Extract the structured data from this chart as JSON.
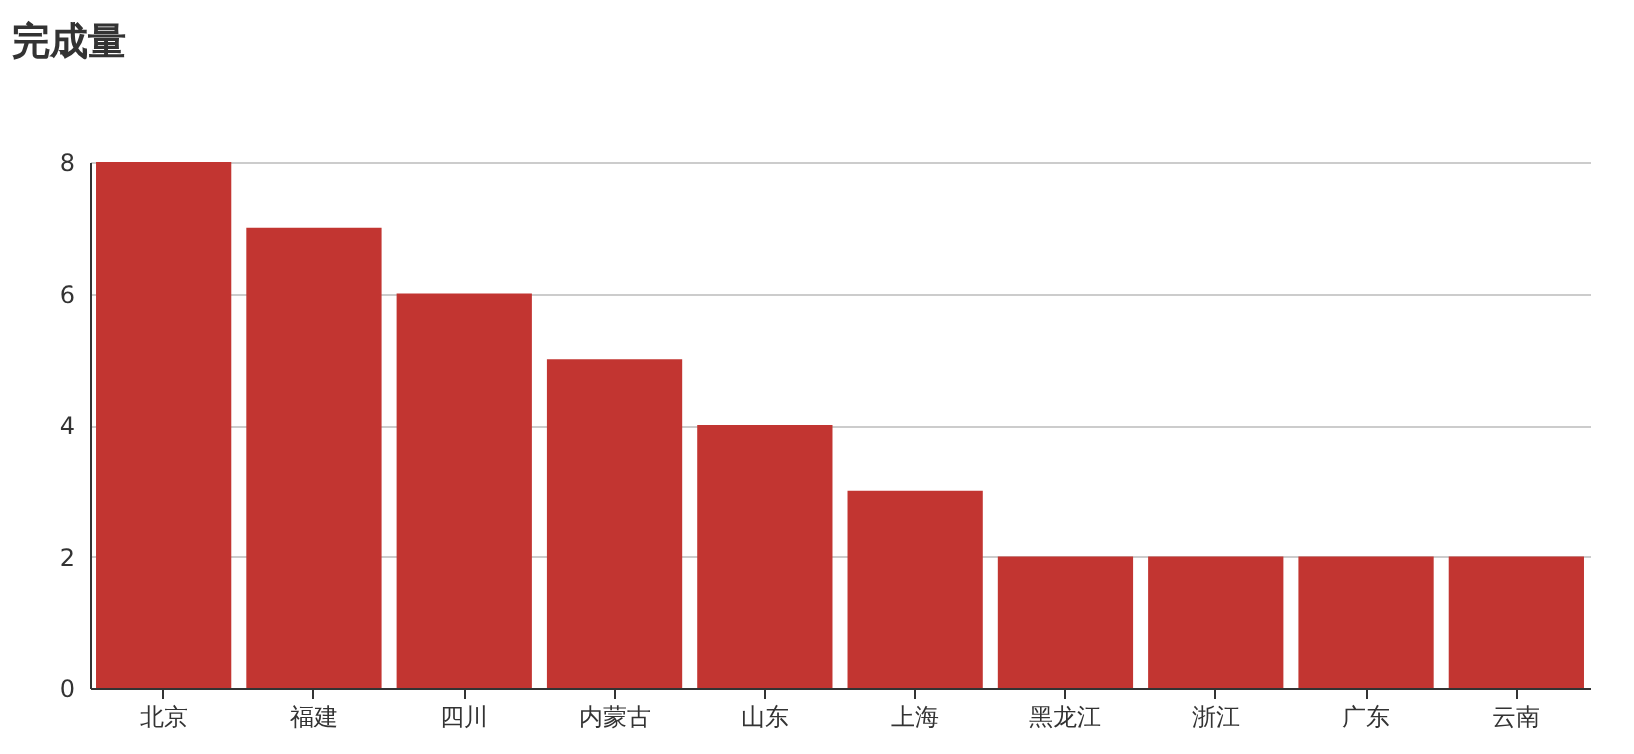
{
  "chart_data": {
    "type": "bar",
    "title": "完成量",
    "categories": [
      "北京",
      "福建",
      "四川",
      "内蒙古",
      "山东",
      "上海",
      "黑龙江",
      "浙江",
      "广东",
      "云南"
    ],
    "values": [
      8,
      7,
      6,
      5,
      4,
      3,
      2,
      2,
      2,
      2
    ],
    "color": "#c23531",
    "ylim": [
      0,
      8
    ],
    "yticks": [
      0,
      2,
      4,
      6,
      8
    ],
    "grid": "y"
  }
}
